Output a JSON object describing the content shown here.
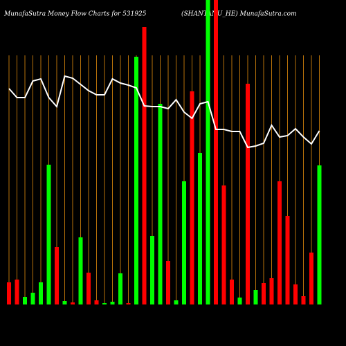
{
  "chart_data": {
    "type": "bar",
    "title": "MunafaSutra  Money Flow  Charts for 531925",
    "subtitle": "(SHANTANU_HE) MunafaSutra.com",
    "categories": [
      null,
      null,
      null,
      null,
      null,
      null,
      null,
      null,
      null,
      null,
      null,
      null,
      null,
      null,
      null,
      null,
      null,
      null,
      null,
      null,
      null,
      null,
      null,
      null,
      null,
      null,
      null,
      null,
      null,
      null,
      null,
      null,
      null,
      null,
      null,
      null,
      null,
      null,
      null,
      null
    ],
    "values": [
      32,
      36,
      11,
      17,
      32,
      202,
      83,
      5,
      3,
      97,
      46,
      6,
      2,
      4,
      45,
      2,
      358,
      401,
      99,
      290,
      63,
      6,
      178,
      308,
      219,
      440,
      440,
      172,
      36,
      10,
      319,
      21,
      31,
      38,
      178,
      128,
      29,
      12,
      75,
      201
    ],
    "colors": [
      "#ff0000",
      "#ff0000",
      "#00ff00",
      "#00ff00",
      "#00ff00",
      "#00ff00",
      "#ff0000",
      "#00ff00",
      "#ff0000",
      "#00ff00",
      "#ff0000",
      "#ff0000",
      "#00ff00",
      "#00ff00",
      "#00ff00",
      "#ff0000",
      "#00ff00",
      "#ff0000",
      "#00ff00",
      "#00ff00",
      "#ff0000",
      "#00ff00",
      "#00ff00",
      "#ff0000",
      "#00ff00",
      "#00ff00",
      "#ff0000",
      "#ff0000",
      "#ff0000",
      "#00ff00",
      "#ff0000",
      "#00ff00",
      "#ff0000",
      "#ff0000",
      "#ff0000",
      "#ff0000",
      "#ff0000",
      "#ff0000",
      "#ff0000",
      "#00ff00"
    ],
    "line": {
      "color": "#ffffff",
      "values": [
        312,
        299,
        299,
        323,
        326,
        299,
        286,
        330,
        327,
        318,
        309,
        303,
        303,
        326,
        320,
        317,
        313,
        287,
        286,
        286,
        283,
        296,
        278,
        269,
        290,
        293,
        253,
        253,
        250,
        250,
        227,
        229,
        233,
        259,
        242,
        244,
        254,
        242,
        232,
        251
      ]
    },
    "ylim": [
      0,
      440
    ],
    "y2lim": [
      0,
      440
    ],
    "grid_color": "#b8720a"
  }
}
